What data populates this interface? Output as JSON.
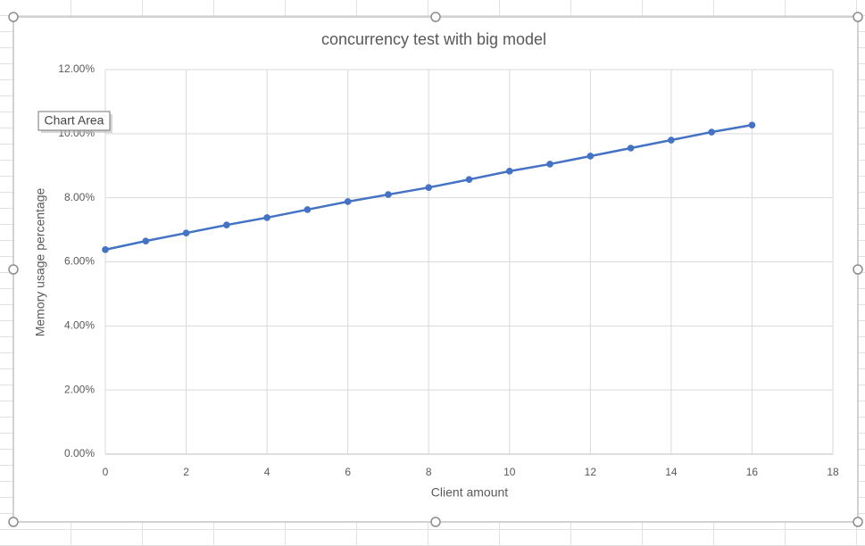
{
  "chart_data": {
    "type": "line",
    "title": "concurrency test with big model",
    "x_label": "Client amount",
    "y_label": "Memory usage percentage",
    "x": [
      0,
      1,
      2,
      3,
      4,
      5,
      6,
      7,
      8,
      9,
      10,
      11,
      12,
      13,
      14,
      15,
      16
    ],
    "values": [
      6.38,
      6.65,
      6.9,
      7.15,
      7.38,
      7.63,
      7.88,
      8.1,
      8.32,
      8.57,
      8.83,
      9.05,
      9.3,
      9.55,
      9.8,
      10.05,
      10.27
    ],
    "color": "#4472c4",
    "xlim": [
      0,
      18
    ],
    "xticks": [
      0,
      2,
      4,
      6,
      8,
      10,
      12,
      14,
      16,
      18
    ],
    "ylim": [
      0,
      12
    ],
    "yticks": [
      {
        "value": 0,
        "label": "0.00%"
      },
      {
        "value": 2,
        "label": "2.00%"
      },
      {
        "value": 4,
        "label": "4.00%"
      },
      {
        "value": 6,
        "label": "6.00%"
      },
      {
        "value": 8,
        "label": "8.00%"
      },
      {
        "value": 10,
        "label": "10.00%"
      },
      {
        "value": 12,
        "label": "12.00%"
      }
    ],
    "grid": true
  },
  "tooltip": "Chart Area"
}
